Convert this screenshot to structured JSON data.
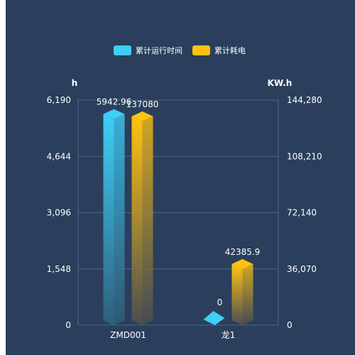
{
  "chart_data": {
    "type": "bar",
    "categories": [
      "ZMD001",
      "龙1"
    ],
    "series": [
      {
        "name": "累计运行时间",
        "axis": "left",
        "color_light": "#3dcff7",
        "color_dark": "#2f5f7d",
        "values": [
          5942.96,
          0
        ],
        "labels": [
          "5942.96",
          "0"
        ]
      },
      {
        "name": "累计耗电",
        "axis": "right",
        "color_light": "#ffc30f",
        "color_dark": "#4c4e52",
        "values": [
          137080,
          42385.9
        ],
        "labels": [
          "137080",
          "42385.9"
        ]
      }
    ],
    "y_left": {
      "unit": "h",
      "min": 0,
      "max": 6190,
      "ticks": [
        "0",
        "1,548",
        "3,096",
        "4,644",
        "6,190"
      ]
    },
    "y_right": {
      "unit": "KW.h",
      "min": 0,
      "max": 144280,
      "ticks": [
        "0",
        "36,070",
        "72,140",
        "108,210",
        "144,280"
      ]
    },
    "grid": true,
    "legend_position": "top-center",
    "colors": {
      "panel_bg": "#2b3f5c",
      "grid": "#4e6583",
      "text": "#ffffff"
    }
  }
}
